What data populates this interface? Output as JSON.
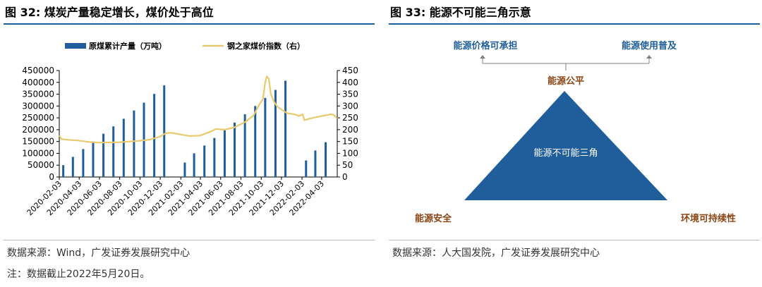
{
  "left_panel": {
    "title": "图 32: 煤炭产量稳定增长，煤价处于高位",
    "source": "数据来源：Wind，广发证券发展研究中心",
    "footnote": "注：数据截止2022年5月20日。"
  },
  "right_panel": {
    "title": "图 33: 能源不可能三角示意",
    "source": "数据来源：人大国发院，广发证券发展研究中心"
  },
  "colors": {
    "bar": "#1f5e9a",
    "line": "#e8c96b",
    "title_rule": "#1f5e9a",
    "brown_label": "#8b4513",
    "blue_label": "#1f5e9a"
  },
  "chart_data": [
    {
      "type": "bar+line",
      "title": "",
      "x_tick_labels": [
        "2020-02-03",
        "2020-04-03",
        "2020-06-03",
        "2020-08-03",
        "2020-10-03",
        "2020-12-03",
        "2021-02-03",
        "2021-04-03",
        "2021-06-03",
        "2021-08-03",
        "2021-10-03",
        "2021-12-03",
        "2022-02-03",
        "2022-04-03"
      ],
      "x_range": [
        "2020-02-03",
        "2022-05-20"
      ],
      "y_left": {
        "ticks": [
          0,
          50000,
          100000,
          150000,
          200000,
          250000,
          300000,
          350000,
          400000,
          450000
        ],
        "ylim": [
          0,
          450000
        ]
      },
      "y_right": {
        "ticks": [
          0,
          50,
          100,
          150,
          200,
          250,
          300,
          350,
          400,
          450
        ],
        "ylim": [
          0,
          450
        ]
      },
      "legend_position": "top",
      "grid": false,
      "series": [
        {
          "name": "原煤累计产量（万吨）",
          "kind": "bar",
          "axis": "left",
          "points": [
            [
              "2020-02-15",
              50000
            ],
            [
              "2020-03-15",
              85000
            ],
            [
              "2020-04-15",
              118000
            ],
            [
              "2020-05-15",
              150000
            ],
            [
              "2020-06-15",
              183000
            ],
            [
              "2020-07-15",
              214000
            ],
            [
              "2020-08-15",
              246000
            ],
            [
              "2020-09-15",
              281000
            ],
            [
              "2020-10-15",
              314000
            ],
            [
              "2020-11-15",
              351000
            ],
            [
              "2020-12-15",
              387000
            ],
            [
              "2021-02-15",
              61000
            ],
            [
              "2021-03-15",
              100000
            ],
            [
              "2021-04-15",
              133000
            ],
            [
              "2021-05-15",
              165000
            ],
            [
              "2021-06-15",
              197000
            ],
            [
              "2021-07-15",
              230000
            ],
            [
              "2021-08-15",
              265000
            ],
            [
              "2021-09-15",
              300000
            ],
            [
              "2021-10-15",
              334000
            ],
            [
              "2021-11-15",
              368000
            ],
            [
              "2021-12-15",
              407000
            ],
            [
              "2022-02-15",
              70000
            ],
            [
              "2022-03-15",
              112000
            ],
            [
              "2022-04-15",
              147000
            ]
          ]
        },
        {
          "name": "钢之家煤价指数（右）",
          "kind": "line",
          "axis": "right",
          "points": [
            [
              "2020-02-03",
              175
            ],
            [
              "2020-02-10",
              160
            ],
            [
              "2020-03-01",
              157
            ],
            [
              "2020-04-01",
              154
            ],
            [
              "2020-05-01",
              148
            ],
            [
              "2020-06-01",
              145
            ],
            [
              "2020-07-01",
              146
            ],
            [
              "2020-08-01",
              147
            ],
            [
              "2020-09-01",
              150
            ],
            [
              "2020-10-01",
              153
            ],
            [
              "2020-11-01",
              158
            ],
            [
              "2020-12-01",
              170
            ],
            [
              "2020-12-20",
              185
            ],
            [
              "2021-01-05",
              187
            ],
            [
              "2021-02-01",
              180
            ],
            [
              "2021-03-01",
              173
            ],
            [
              "2021-04-01",
              175
            ],
            [
              "2021-05-01",
              190
            ],
            [
              "2021-05-20",
              203
            ],
            [
              "2021-06-15",
              200
            ],
            [
              "2021-07-15",
              210
            ],
            [
              "2021-08-15",
              232
            ],
            [
              "2021-09-10",
              260
            ],
            [
              "2021-09-25",
              300
            ],
            [
              "2021-10-08",
              330
            ],
            [
              "2021-10-15",
              400
            ],
            [
              "2021-10-20",
              425
            ],
            [
              "2021-10-26",
              415
            ],
            [
              "2021-11-01",
              350
            ],
            [
              "2021-11-10",
              320
            ],
            [
              "2021-11-20",
              298
            ],
            [
              "2021-12-01",
              287
            ],
            [
              "2021-12-20",
              270
            ],
            [
              "2022-01-10",
              265
            ],
            [
              "2022-01-25",
              258
            ],
            [
              "2022-02-05",
              265
            ],
            [
              "2022-02-10",
              240
            ],
            [
              "2022-03-01",
              248
            ],
            [
              "2022-04-01",
              257
            ],
            [
              "2022-05-01",
              265
            ],
            [
              "2022-05-10",
              262
            ],
            [
              "2022-05-20",
              247
            ]
          ]
        }
      ]
    },
    {
      "type": "diagram",
      "triangle_label": "能源不可能三角",
      "apex_label": "能源公平",
      "left_label": "能源安全",
      "right_label": "环境可持续性",
      "top_left_label": "能源价格可承担",
      "top_right_label": "能源使用普及"
    }
  ]
}
